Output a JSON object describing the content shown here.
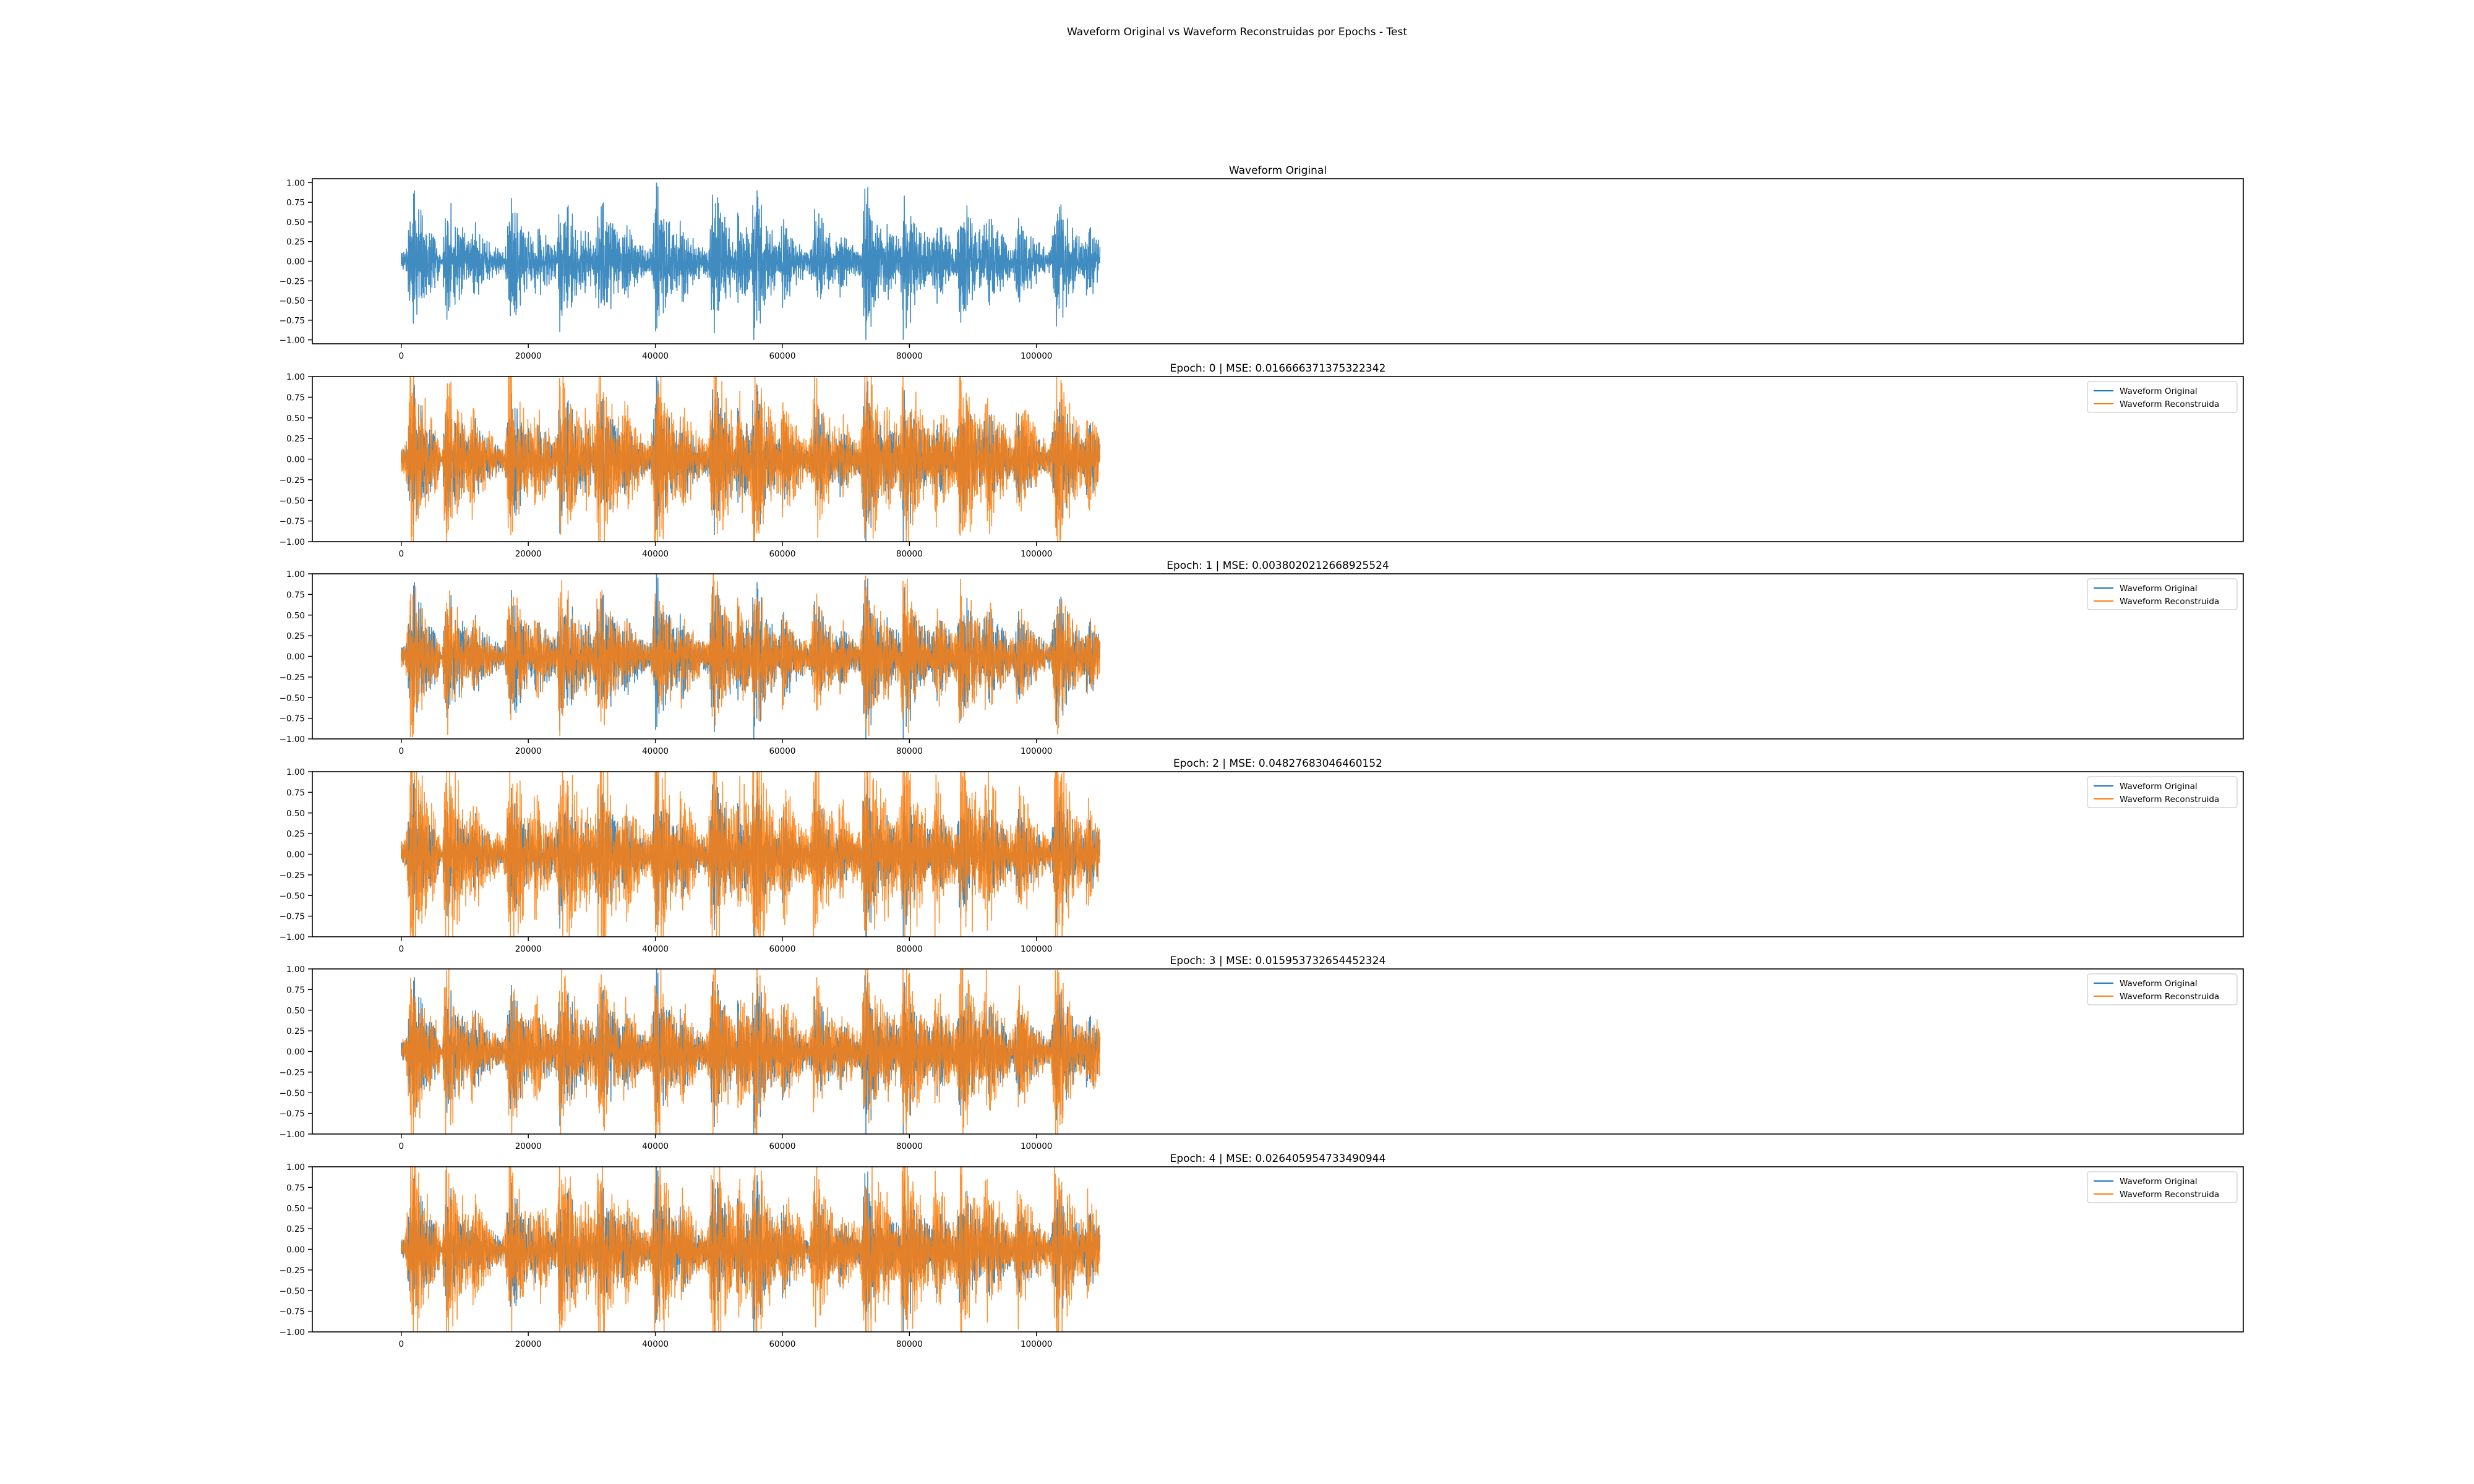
{
  "figure": {
    "suptitle": "Waveform Original vs Waveform Reconstruidas por Epochs - Test"
  },
  "colors": {
    "original": "#1f77b4",
    "reconstructed": "#ff7f0e",
    "axes": "#000000",
    "background": "#ffffff"
  },
  "chart_data": [
    {
      "type": "line",
      "title": "Waveform Original",
      "xlabel": "",
      "ylabel": "",
      "xlim": [
        -14000,
        290000
      ],
      "ylim": [
        -1.05,
        1.05
      ],
      "xticks": [
        0,
        20000,
        40000,
        60000,
        80000,
        100000
      ],
      "yticks": [
        -1.0,
        -0.75,
        -0.5,
        -0.25,
        0.0,
        0.25,
        0.5,
        0.75,
        1.0
      ],
      "legend": null,
      "grid": false,
      "series": [
        {
          "color_key": "original",
          "x_range": [
            0,
            110000
          ],
          "min": -1.0,
          "max": 1.0
        }
      ]
    },
    {
      "type": "line",
      "title": "Epoch: 0 | MSE: 0.016666371375322342",
      "xlim": [
        -14000,
        290000
      ],
      "ylim": [
        -1.0,
        1.0
      ],
      "xticks": [
        0,
        20000,
        40000,
        60000,
        80000,
        100000
      ],
      "yticks": [
        -1.0,
        -0.75,
        -0.5,
        -0.25,
        0.0,
        0.25,
        0.5,
        0.75,
        1.0
      ],
      "legend": "upper right",
      "grid": false,
      "series": [
        {
          "name": "Waveform Original",
          "color_key": "original",
          "x_range": [
            0,
            110000
          ],
          "min": -1.0,
          "max": 1.0
        },
        {
          "name": "Waveform Reconstruida",
          "color_key": "reconstructed",
          "x_range": [
            0,
            110000
          ],
          "min": -1.0,
          "max": 1.0
        }
      ]
    },
    {
      "type": "line",
      "title": "Epoch: 1 | MSE: 0.0038020212668925524",
      "xlim": [
        -14000,
        290000
      ],
      "ylim": [
        -1.0,
        1.0
      ],
      "xticks": [
        0,
        20000,
        40000,
        60000,
        80000,
        100000
      ],
      "yticks": [
        -1.0,
        -0.75,
        -0.5,
        -0.25,
        0.0,
        0.25,
        0.5,
        0.75,
        1.0
      ],
      "legend": "upper right",
      "grid": false,
      "series": [
        {
          "name": "Waveform Original",
          "color_key": "original",
          "x_range": [
            0,
            110000
          ],
          "min": -1.0,
          "max": 1.0
        },
        {
          "name": "Waveform Reconstruida",
          "color_key": "reconstructed",
          "x_range": [
            0,
            110000
          ],
          "min": -1.0,
          "max": 1.0
        }
      ]
    },
    {
      "type": "line",
      "title": "Epoch: 2 | MSE: 0.04827683046460152",
      "xlim": [
        -14000,
        290000
      ],
      "ylim": [
        -1.0,
        1.0
      ],
      "xticks": [
        0,
        20000,
        40000,
        60000,
        80000,
        100000
      ],
      "yticks": [
        -1.0,
        -0.75,
        -0.5,
        -0.25,
        0.0,
        0.25,
        0.5,
        0.75,
        1.0
      ],
      "legend": "upper right",
      "grid": false,
      "series": [
        {
          "name": "Waveform Original",
          "color_key": "original",
          "x_range": [
            0,
            110000
          ],
          "min": -1.0,
          "max": 1.0
        },
        {
          "name": "Waveform Reconstruida",
          "color_key": "reconstructed",
          "x_range": [
            0,
            110000
          ],
          "min": -1.0,
          "max": 1.0
        }
      ]
    },
    {
      "type": "line",
      "title": "Epoch: 3 | MSE: 0.015953732654452324",
      "xlim": [
        -14000,
        290000
      ],
      "ylim": [
        -1.0,
        1.0
      ],
      "xticks": [
        0,
        20000,
        40000,
        60000,
        80000,
        100000
      ],
      "yticks": [
        -1.0,
        -0.75,
        -0.5,
        -0.25,
        0.0,
        0.25,
        0.5,
        0.75,
        1.0
      ],
      "legend": "upper right",
      "grid": false,
      "series": [
        {
          "name": "Waveform Original",
          "color_key": "original",
          "x_range": [
            0,
            110000
          ],
          "min": -1.0,
          "max": 1.0
        },
        {
          "name": "Waveform Reconstruida",
          "color_key": "reconstructed",
          "x_range": [
            0,
            110000
          ],
          "min": -1.0,
          "max": 1.0
        }
      ]
    },
    {
      "type": "line",
      "title": "Epoch: 4 | MSE: 0.026405954733490944",
      "xlim": [
        -14000,
        290000
      ],
      "ylim": [
        -1.0,
        1.0
      ],
      "xticks": [
        0,
        20000,
        40000,
        60000,
        80000,
        100000
      ],
      "yticks": [
        -1.0,
        -0.75,
        -0.5,
        -0.25,
        0.0,
        0.25,
        0.5,
        0.75,
        1.0
      ],
      "legend": "upper right",
      "grid": false,
      "series": [
        {
          "name": "Waveform Original",
          "color_key": "original",
          "x_range": [
            0,
            110000
          ],
          "min": -1.0,
          "max": 1.0
        },
        {
          "name": "Waveform Reconstruida",
          "color_key": "reconstructed",
          "x_range": [
            0,
            110000
          ],
          "min": -1.0,
          "max": 1.0
        }
      ]
    }
  ]
}
